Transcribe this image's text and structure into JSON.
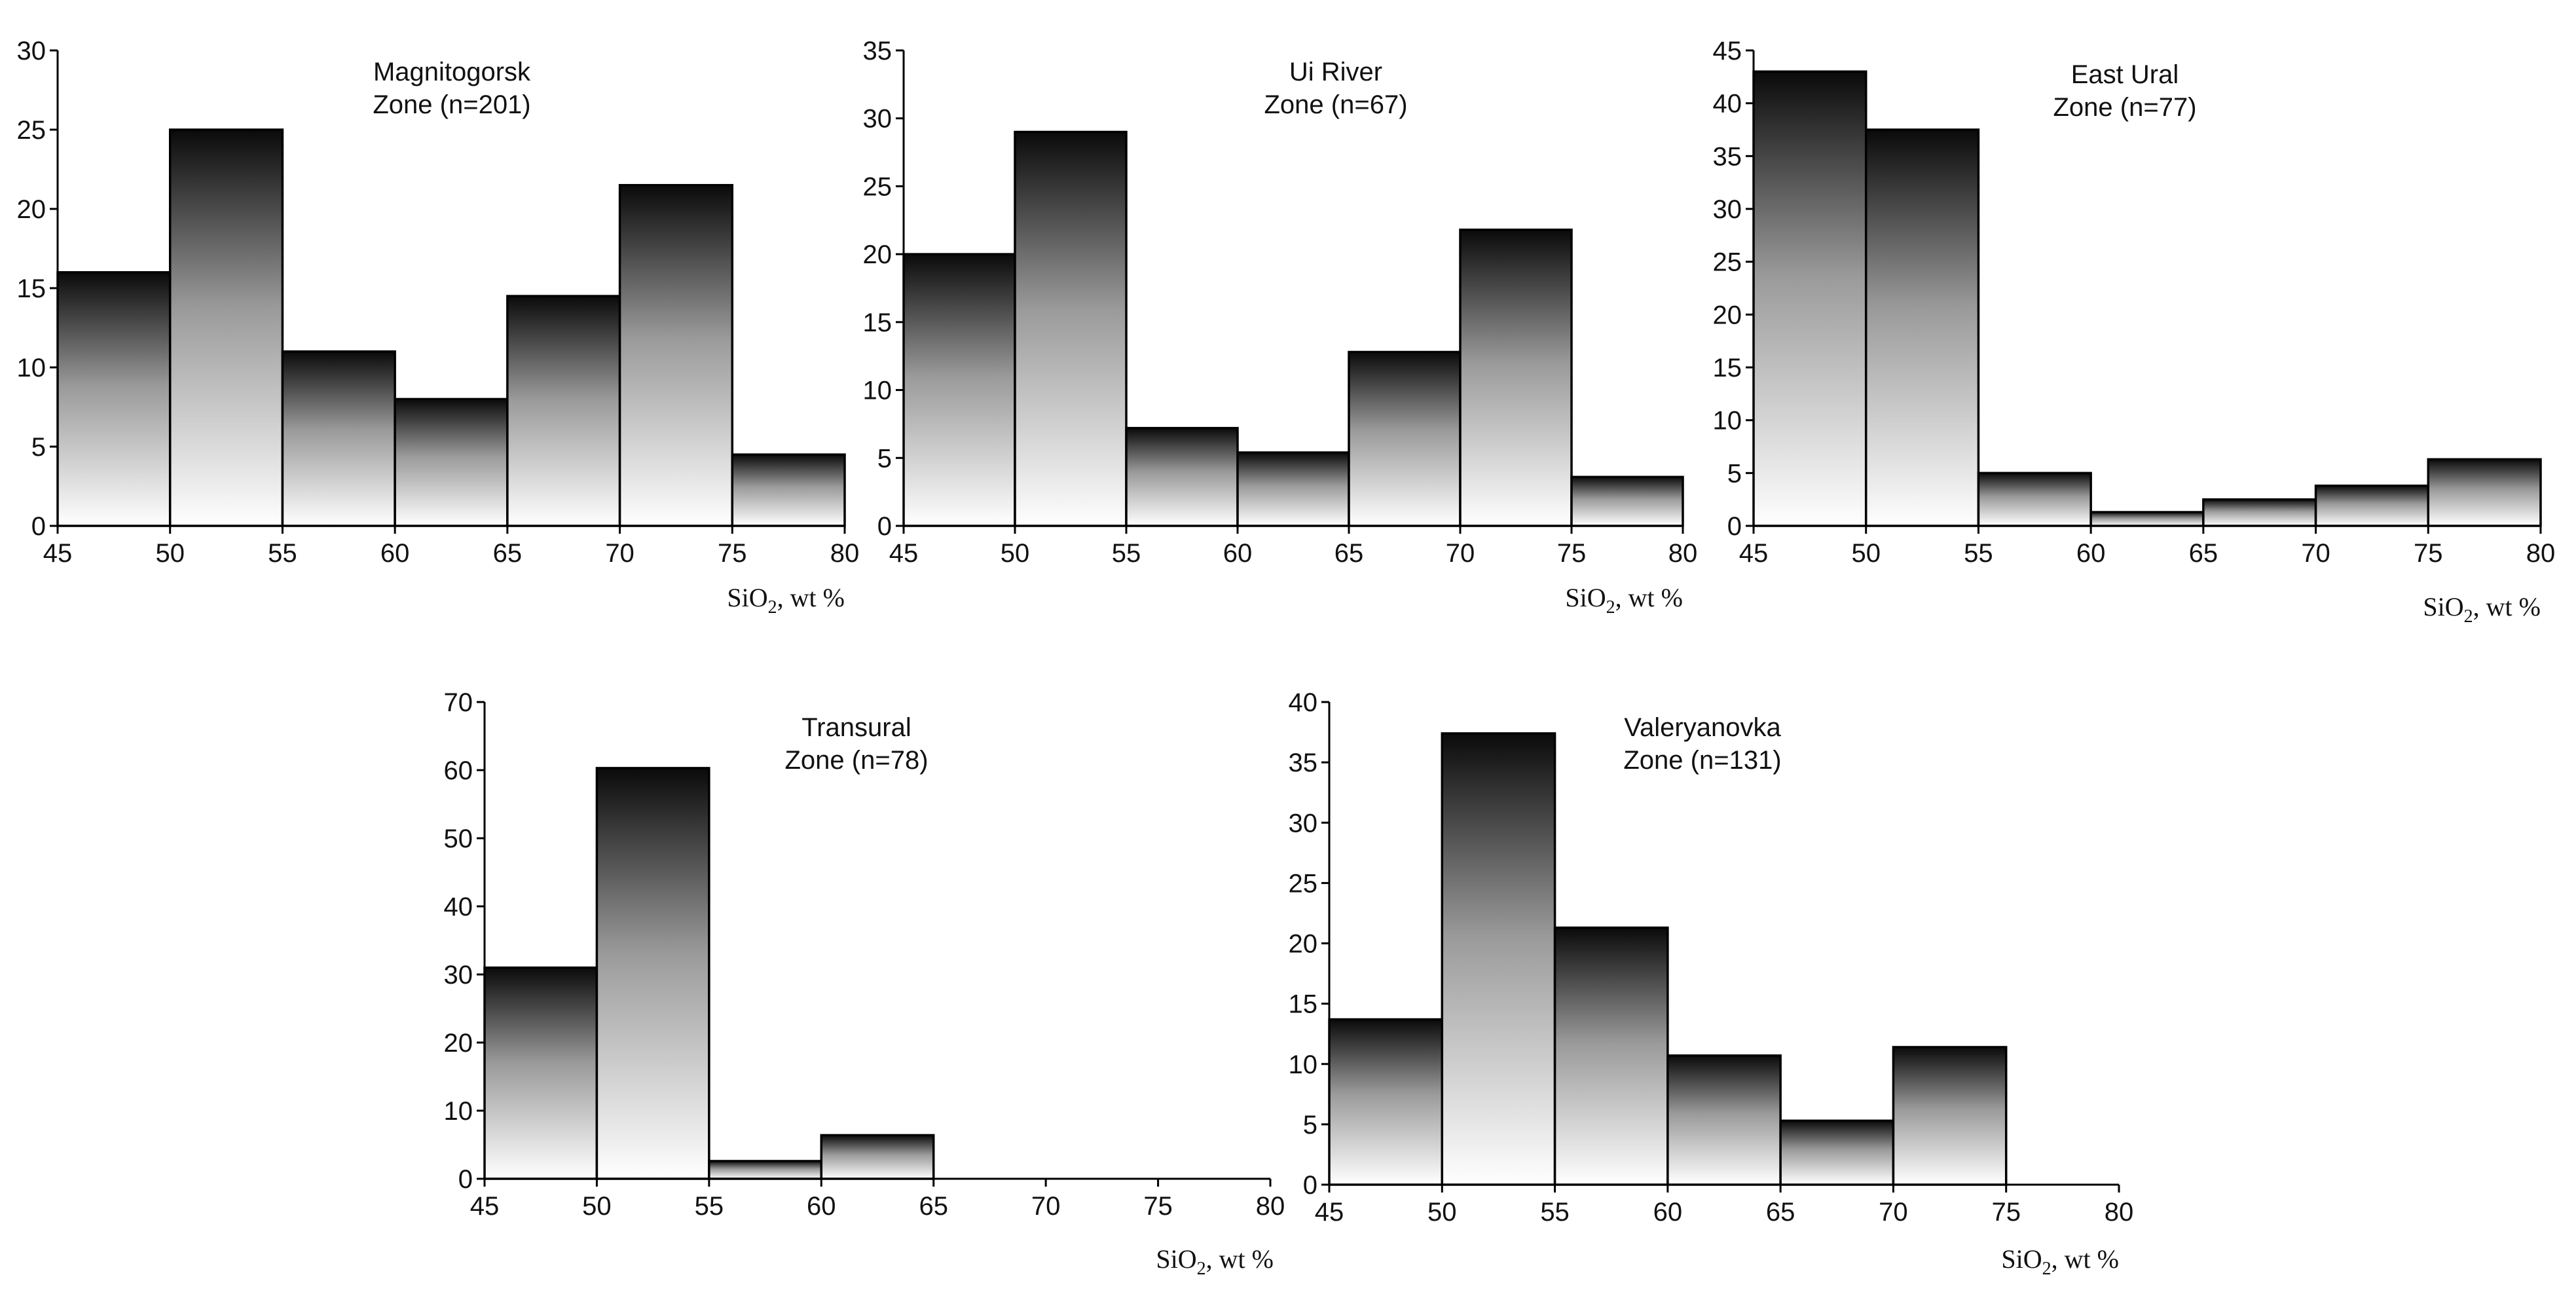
{
  "chart_data": [
    {
      "type": "bar",
      "title": "Magnitogorsk",
      "subtitle": "Zone (n=201)",
      "xlabel_main": "SiO",
      "xlabel_sub": "2",
      "xlabel_rest": ", wt %",
      "ylabel": "",
      "bin_edges": [
        45,
        50,
        55,
        60,
        65,
        70,
        75,
        80
      ],
      "values": [
        16,
        25,
        11,
        8,
        14.5,
        21.5,
        4.5
      ],
      "xlim": [
        45,
        80
      ],
      "ylim": [
        0,
        30
      ],
      "yticks": [
        0,
        5,
        10,
        15,
        20,
        25,
        30
      ],
      "xticks": [
        45,
        50,
        55,
        60,
        65,
        70,
        75,
        80
      ],
      "grid": false
    },
    {
      "type": "bar",
      "title": "Ui River",
      "subtitle": "Zone (n=67)",
      "xlabel_main": "SiO",
      "xlabel_sub": "2",
      "xlabel_rest": ", wt %",
      "ylabel": "",
      "bin_edges": [
        45,
        50,
        55,
        60,
        65,
        70,
        75,
        80
      ],
      "values": [
        20,
        29,
        7.2,
        5.4,
        12.8,
        21.8,
        3.6
      ],
      "xlim": [
        45,
        80
      ],
      "ylim": [
        0,
        35
      ],
      "yticks": [
        0,
        5,
        10,
        15,
        20,
        25,
        30,
        35
      ],
      "xticks": [
        45,
        50,
        55,
        60,
        65,
        70,
        75,
        80
      ],
      "grid": false
    },
    {
      "type": "bar",
      "title": "East Ural",
      "subtitle": "Zone (n=77)",
      "xlabel_main": "SiO",
      "xlabel_sub": "2",
      "xlabel_rest": ", wt %",
      "ylabel": "",
      "bin_edges": [
        45,
        50,
        55,
        60,
        65,
        70,
        75,
        80
      ],
      "values": [
        43,
        37.5,
        5,
        1.3,
        2.5,
        3.8,
        6.3
      ],
      "xlim": [
        45,
        80
      ],
      "ylim": [
        0,
        45
      ],
      "yticks": [
        0,
        5,
        10,
        15,
        20,
        25,
        30,
        35,
        40,
        45
      ],
      "xticks": [
        45,
        50,
        55,
        60,
        65,
        70,
        75,
        80
      ],
      "grid": false
    },
    {
      "type": "bar",
      "title": "Transural",
      "subtitle": "Zone (n=78)",
      "xlabel_main": "SiO",
      "xlabel_sub": "2",
      "xlabel_rest": ", wt %",
      "ylabel": "",
      "bin_edges": [
        45,
        50,
        55,
        60,
        65
      ],
      "values": [
        31,
        60.3,
        2.6,
        6.4
      ],
      "xlim": [
        45,
        80
      ],
      "ylim": [
        0,
        70
      ],
      "yticks": [
        0,
        10,
        20,
        30,
        40,
        50,
        60,
        70
      ],
      "xticks": [
        45,
        50,
        55,
        60,
        65,
        70,
        75,
        80
      ],
      "grid": false
    },
    {
      "type": "bar",
      "title": "Valeryanovka",
      "subtitle": "Zone (n=131)",
      "xlabel_main": "SiO",
      "xlabel_sub": "2",
      "xlabel_rest": ", wt %",
      "ylabel": "",
      "bin_edges": [
        45,
        50,
        55,
        60,
        65,
        70,
        75
      ],
      "values": [
        13.7,
        37.4,
        21.3,
        10.7,
        5.3,
        11.4
      ],
      "xlim": [
        45,
        80
      ],
      "ylim": [
        0,
        40
      ],
      "yticks": [
        0,
        5,
        10,
        15,
        20,
        25,
        30,
        35,
        40
      ],
      "xticks": [
        45,
        50,
        55,
        60,
        65,
        70,
        75,
        80
      ],
      "grid": false
    }
  ],
  "colors": {
    "bar_top": "#0a0a0a",
    "bar_mid": "#9a9a9a",
    "bar_bottom": "#ffffff",
    "axis": "#000000",
    "text": "#111111"
  }
}
